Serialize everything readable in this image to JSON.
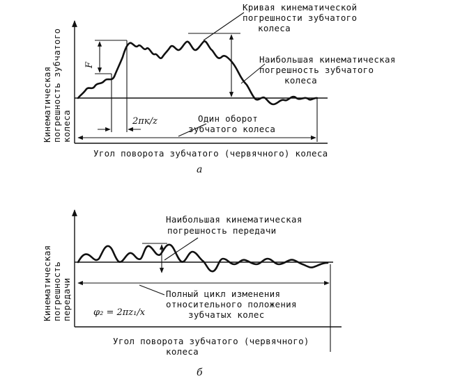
{
  "diagram_a": {
    "y_axis_label_line1": "Кинематическая",
    "y_axis_label_line2": "погрешность зубчатого",
    "y_axis_label_line3": "колеса",
    "x_axis_label": "Угол поворота зубчатого (червячного) колеса",
    "curve_label_line1": "Кривая кинематической",
    "curve_label_line2": "погрешности зубчатого",
    "curve_label_line3": "колеса",
    "max_error_label_line1": "Наибольшая кинематическая",
    "max_error_label_line2": "погрешность зубчатого",
    "max_error_label_line3": "колеса",
    "one_rev_label_line1": "Один оборот",
    "one_rev_label_line2": "зубчатого колеса",
    "period_label": "2πк/z",
    "local_error_symbol": "F",
    "caption": "а"
  },
  "diagram_b": {
    "y_axis_label_line1": "Кинематическая",
    "y_axis_label_line2": "погрешность",
    "y_axis_label_line3": "передачи",
    "x_axis_label_line1": "Угол поворота зубчатого (червячного)",
    "x_axis_label_line2": "колеса",
    "max_error_label_line1": "Наибольшая кинематическая",
    "max_error_label_line2": "погрешность передачи",
    "cycle_label_line1": "Полный цикл изменения",
    "cycle_label_line2": "относительного положения",
    "cycle_label_line3": "зубчатых колес",
    "cycle_formula": "φ₂ = 2πz₁/x",
    "caption": "б"
  }
}
